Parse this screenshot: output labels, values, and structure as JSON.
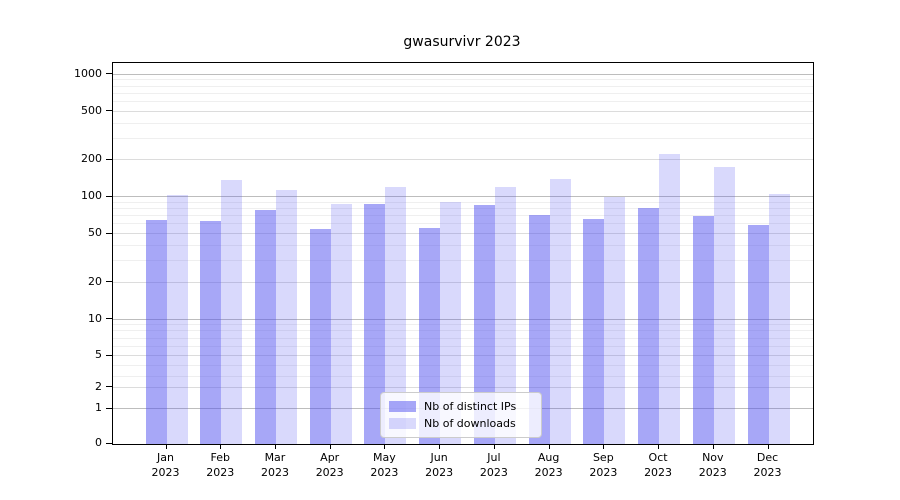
{
  "title": "gwasurvivr 2023",
  "legend": {
    "items": [
      {
        "label": "Nb of distinct IPs",
        "color": "rgba(80,80,240,0.5)"
      },
      {
        "label": "Nb of downloads",
        "color": "rgba(80,80,240,0.22)"
      }
    ]
  },
  "colors": {
    "bar_distinct_ips": "rgba(80,80,240,0.5)",
    "bar_downloads": "rgba(80,80,240,0.22)",
    "bar_distinct_ips_hex_on_white": "#a7a7f7",
    "bar_downloads_hex_on_white": "#d9d9f8",
    "grid_major": "#bdbdbd",
    "grid_mid": "#dcdcdc",
    "grid_minor": "#efefef",
    "axis": "#000000"
  },
  "chart_data": {
    "type": "bar",
    "title": "gwasurvivr 2023",
    "categories": [
      "Jan 2023",
      "Feb 2023",
      "Mar 2023",
      "Apr 2023",
      "May 2023",
      "Jun 2023",
      "Jul 2023",
      "Aug 2023",
      "Sep 2023",
      "Oct 2023",
      "Nov 2023",
      "Dec 2023"
    ],
    "series": [
      {
        "name": "Nb of distinct IPs",
        "color": "rgba(80,80,240,0.5)",
        "values": [
          64,
          63,
          78,
          54,
          87,
          55,
          86,
          71,
          66,
          81,
          70,
          59
        ]
      },
      {
        "name": "Nb of downloads",
        "color": "rgba(80,80,240,0.22)",
        "values": [
          103,
          137,
          114,
          87,
          120,
          91,
          120,
          140,
          100,
          222,
          175,
          106
        ]
      }
    ],
    "xlabel": "",
    "ylabel": "",
    "y_scale": "log (compressed linear segment near zero)",
    "y_ticks_labeled": [
      0,
      1,
      2,
      5,
      10,
      20,
      50,
      100,
      200,
      500,
      1000
    ],
    "y_gridlines_major": [
      1,
      10,
      100,
      1000
    ],
    "y_gridlines_mid": [
      2,
      5,
      20,
      50,
      200,
      500
    ],
    "y_gridlines_minor": [
      3,
      4,
      6,
      7,
      8,
      9,
      30,
      40,
      60,
      70,
      80,
      90,
      300,
      400,
      600,
      700,
      800,
      900
    ],
    "ylim": [
      0,
      1250
    ],
    "grid": true,
    "legend_position": "lower center inside plot"
  }
}
